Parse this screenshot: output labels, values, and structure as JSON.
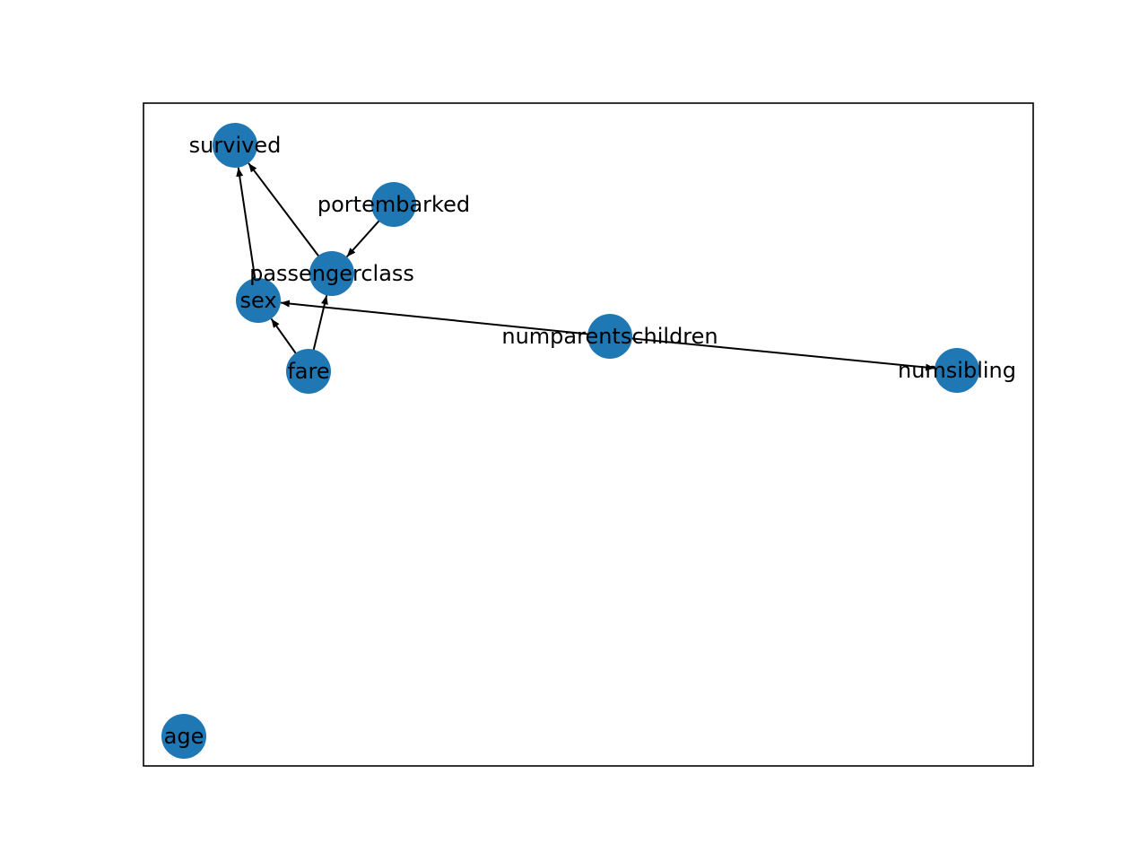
{
  "graph": {
    "node_color": "#1f77b4",
    "edge_color": "#000000",
    "nodes": [
      {
        "id": "survived",
        "label": "survived"
      },
      {
        "id": "portembarked",
        "label": "portembarked"
      },
      {
        "id": "passengerclass",
        "label": "passengerclass"
      },
      {
        "id": "sex",
        "label": "sex"
      },
      {
        "id": "numparentschildren",
        "label": "numparentschildren"
      },
      {
        "id": "fare",
        "label": "fare"
      },
      {
        "id": "numsibling",
        "label": "numsibling"
      },
      {
        "id": "age",
        "label": "age"
      }
    ],
    "edges": [
      {
        "from": "sex",
        "to": "survived"
      },
      {
        "from": "passengerclass",
        "to": "survived"
      },
      {
        "from": "portembarked",
        "to": "passengerclass"
      },
      {
        "from": "fare",
        "to": "passengerclass"
      },
      {
        "from": "fare",
        "to": "sex"
      },
      {
        "from": "numparentschildren",
        "to": "sex"
      },
      {
        "from": "numparentschildren",
        "to": "numsibling"
      }
    ]
  }
}
